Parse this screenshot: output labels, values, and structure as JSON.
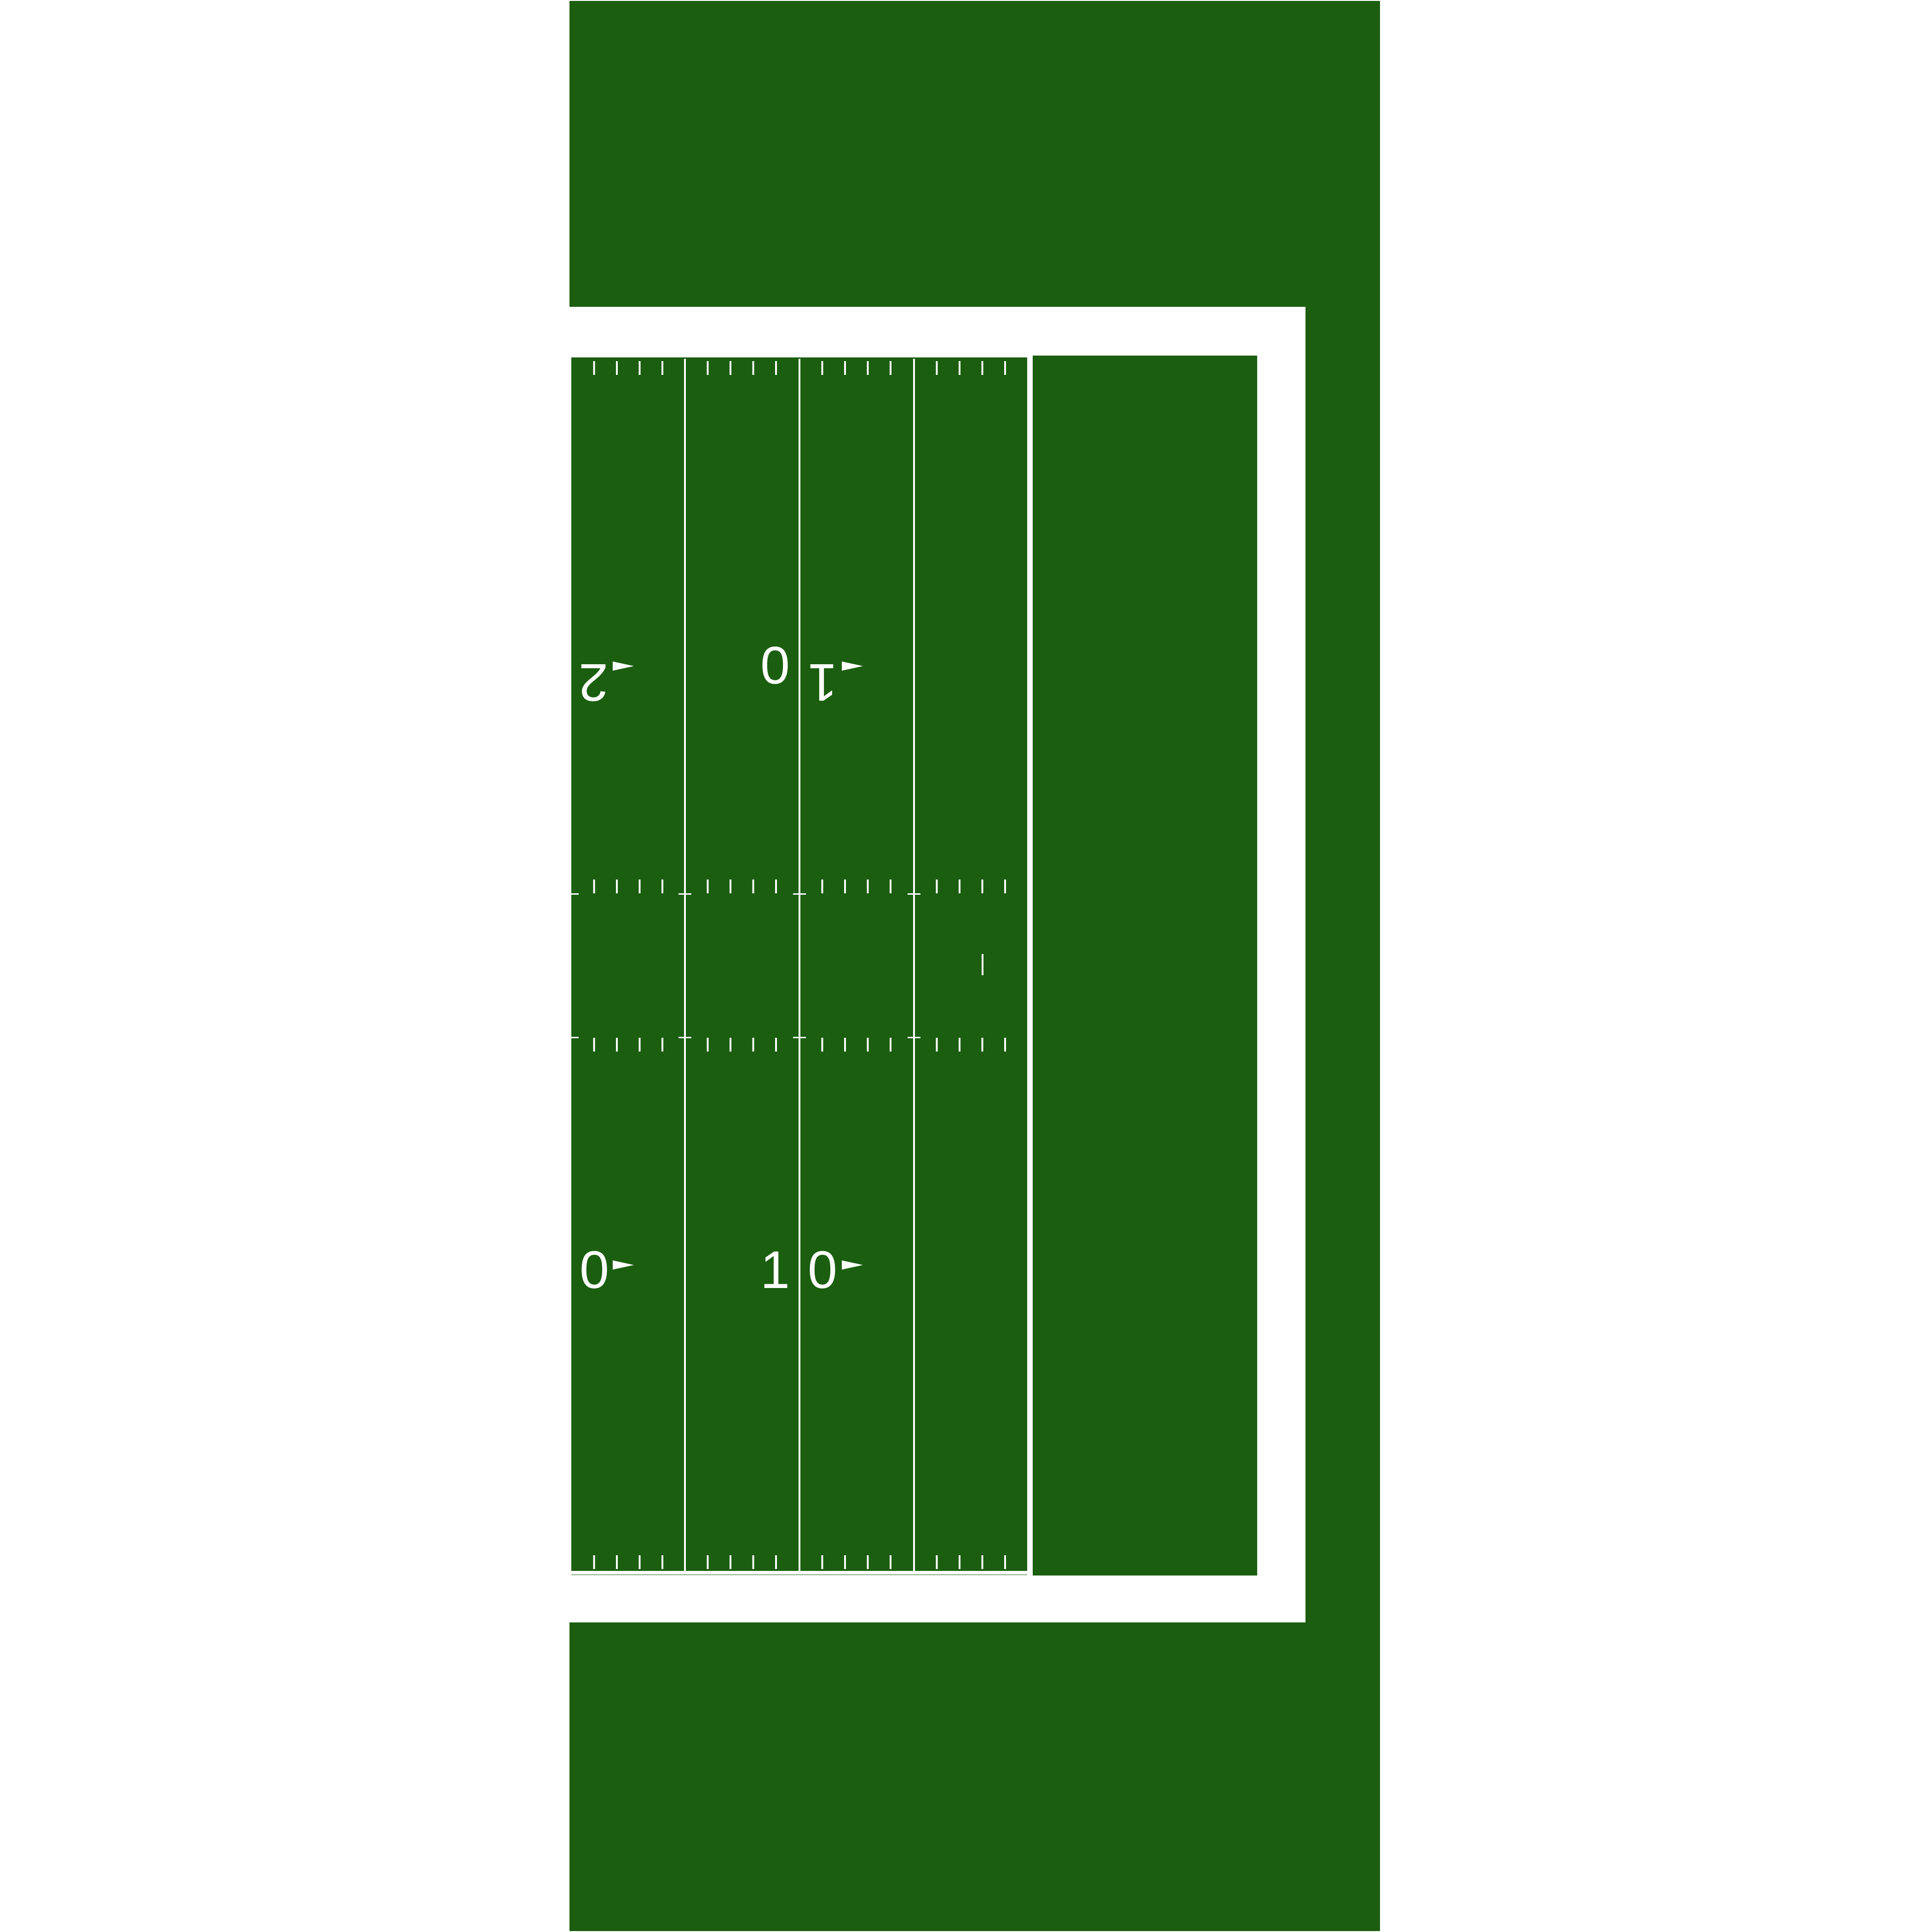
{
  "colors": {
    "grass": "#1b5e10",
    "lines": "#ffffff",
    "background": "#ffffff"
  },
  "field": {
    "yard_numbers": {
      "upper_left": "2",
      "upper_mid_zero": "0",
      "upper_mid_one": "1",
      "lower_left": "0",
      "lower_mid_one": "1",
      "lower_mid_zero": "0"
    },
    "direction_arrows": [
      "right",
      "right",
      "right",
      "right"
    ]
  }
}
